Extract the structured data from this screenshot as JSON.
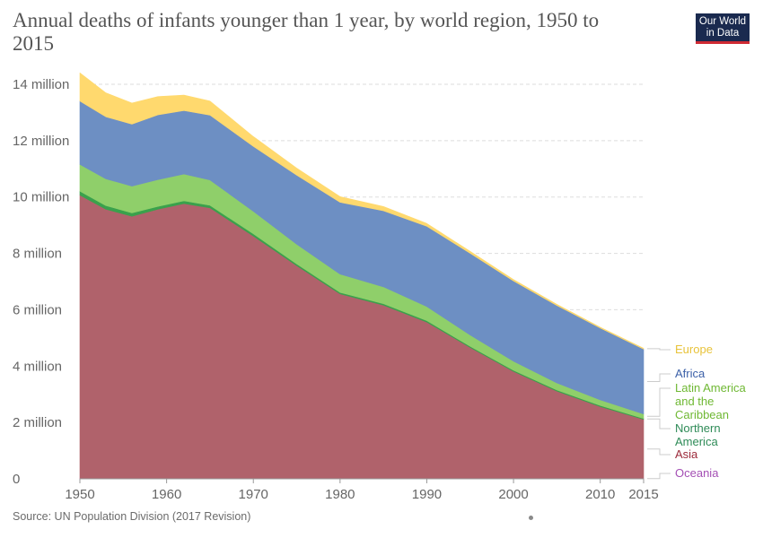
{
  "header": {
    "title": "Annual deaths of infants younger than 1 year, by world region, 1950 to 2015",
    "logo_line1": "Our World",
    "logo_line2": "in Data"
  },
  "footer": {
    "source": "Source: UN Population Division (2017 Revision)"
  },
  "colors": {
    "Oceania": "#a44fb4",
    "Asia": "#b0626b",
    "Northern America": "#3aa14c",
    "Latin America and the Caribbean": "#8fcf6a",
    "Africa": "#6d8fc3",
    "Europe": "#ffd96e",
    "legend_text": {
      "Oceania": "#a44fb4",
      "Asia": "#9c2a3a",
      "Northern America": "#2e8b57",
      "Latin America and the Caribbean": "#6fb833",
      "Africa": "#3c60a8",
      "Europe": "#e8c33a"
    }
  },
  "chart_data": {
    "type": "area",
    "stacked": true,
    "x": [
      1950,
      1953,
      1956,
      1959,
      1962,
      1965,
      1970,
      1975,
      1980,
      1985,
      1990,
      1995,
      2000,
      2005,
      2010,
      2015
    ],
    "series": [
      {
        "name": "Oceania",
        "values": [
          0.015,
          0.015,
          0.015,
          0.015,
          0.015,
          0.015,
          0.015,
          0.014,
          0.013,
          0.012,
          0.012,
          0.012,
          0.011,
          0.011,
          0.011,
          0.011
        ]
      },
      {
        "name": "Asia",
        "values": [
          10.05,
          9.55,
          9.3,
          9.55,
          9.75,
          9.6,
          8.6,
          7.55,
          6.55,
          6.15,
          5.55,
          4.65,
          3.8,
          3.1,
          2.55,
          2.1
        ]
      },
      {
        "name": "Northern America",
        "values": [
          0.14,
          0.13,
          0.12,
          0.1,
          0.1,
          0.09,
          0.08,
          0.06,
          0.05,
          0.05,
          0.05,
          0.04,
          0.04,
          0.04,
          0.04,
          0.03
        ]
      },
      {
        "name": "Latin America and the Caribbean",
        "values": [
          0.95,
          0.95,
          0.95,
          0.95,
          0.95,
          0.9,
          0.8,
          0.7,
          0.65,
          0.6,
          0.5,
          0.4,
          0.32,
          0.25,
          0.2,
          0.16
        ]
      },
      {
        "name": "Africa",
        "values": [
          2.25,
          2.2,
          2.2,
          2.3,
          2.25,
          2.3,
          2.3,
          2.45,
          2.55,
          2.7,
          2.85,
          2.9,
          2.85,
          2.75,
          2.55,
          2.3
        ]
      },
      {
        "name": "Europe",
        "values": [
          1.0,
          0.85,
          0.75,
          0.65,
          0.55,
          0.5,
          0.35,
          0.25,
          0.2,
          0.15,
          0.1,
          0.07,
          0.05,
          0.04,
          0.03,
          0.03
        ]
      }
    ],
    "legend_order": [
      "Europe",
      "Africa",
      "Latin America and the Caribbean",
      "Northern America",
      "Asia",
      "Oceania"
    ],
    "y_ticks": [
      {
        "value": 0,
        "label": "0"
      },
      {
        "value": 2,
        "label": "2 million"
      },
      {
        "value": 4,
        "label": "4 million"
      },
      {
        "value": 6,
        "label": "6 million"
      },
      {
        "value": 8,
        "label": "8 million"
      },
      {
        "value": 10,
        "label": "10 million"
      },
      {
        "value": 12,
        "label": "12 million"
      },
      {
        "value": 14,
        "label": "14 million"
      }
    ],
    "x_ticks": [
      1950,
      1960,
      1970,
      1980,
      1990,
      2000,
      2010,
      2015
    ],
    "xlim": [
      1950,
      2015
    ],
    "ylim": [
      0,
      14
    ],
    "y_unit": "million",
    "grid": "horizontal dashed",
    "legend_position": "right"
  }
}
